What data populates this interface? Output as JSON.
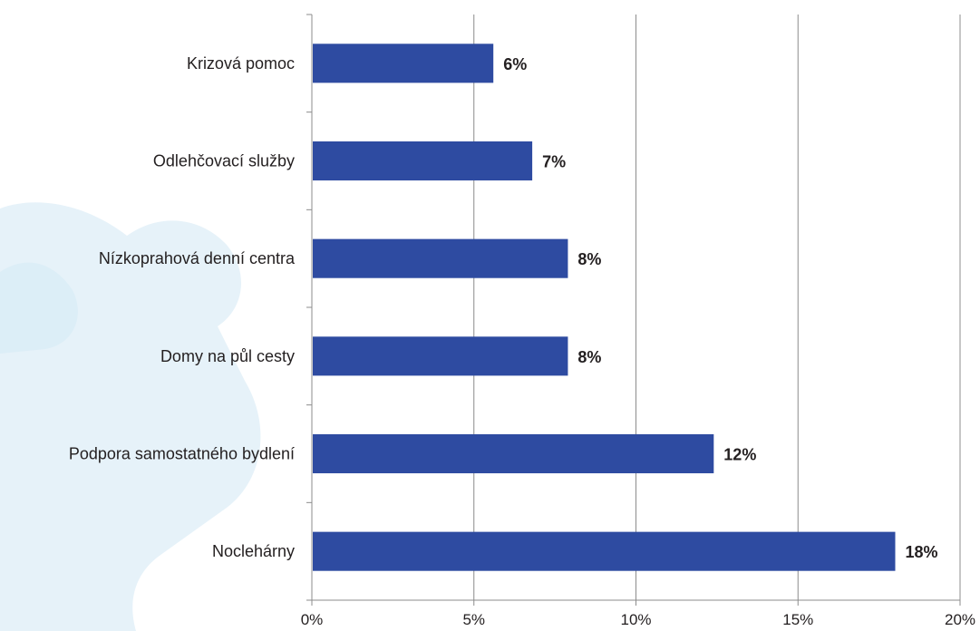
{
  "chart_data": {
    "type": "bar",
    "orientation": "horizontal",
    "categories": [
      "Krizová pomoc",
      "Odlehčovací služby",
      "Nízkoprahová denní centra",
      "Domy na půl cesty",
      "Podpora samostatného bydlení",
      "Noclehárny"
    ],
    "values": [
      5.6,
      6.8,
      7.9,
      7.9,
      12.4,
      18.0
    ],
    "data_labels": [
      "6%",
      "7%",
      "8%",
      "8%",
      "12%",
      "18%"
    ],
    "xlim": [
      0,
      20
    ],
    "x_ticks": [
      0,
      5,
      10,
      15,
      20
    ],
    "x_tick_labels": [
      "0%",
      "5%",
      "10%",
      "15%",
      "20%"
    ],
    "grid": "vertical",
    "legend": "none",
    "title": "",
    "xlabel": "",
    "ylabel": "",
    "colors": {
      "bar": "#2e4ba1",
      "grid": "#8c8c8c",
      "axis": "#8c8c8c",
      "background_shape": "#e3f1f8"
    }
  }
}
